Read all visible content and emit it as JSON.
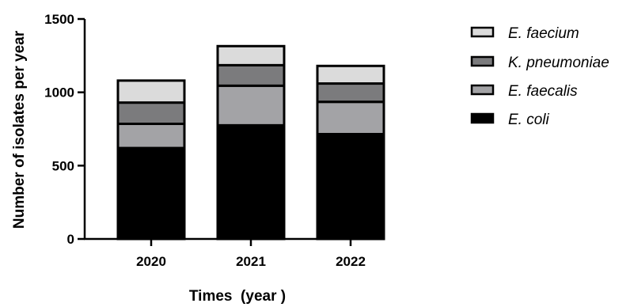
{
  "chart_data": {
    "type": "bar",
    "stacked": true,
    "categories": [
      "2020",
      "2021",
      "2022"
    ],
    "series": [
      {
        "name": "E. coli",
        "values": [
          620,
          775,
          715
        ],
        "color": "#000000"
      },
      {
        "name": "E. faecalis",
        "values": [
          165,
          270,
          220
        ],
        "color": "#a3a3a6"
      },
      {
        "name": "K. pneumoniae",
        "values": [
          145,
          140,
          125
        ],
        "color": "#7b7b7d"
      },
      {
        "name": "E. faecium",
        "values": [
          150,
          130,
          120
        ],
        "color": "#dbdbdb"
      }
    ],
    "legend_order": [
      "E. faecium",
      "K. pneumoniae",
      "E. faecalis",
      "E. coli"
    ],
    "xlabel": "Times  (year )",
    "ylabel": "Number of isolates per year",
    "ylim": [
      0,
      1500
    ],
    "yticks": [
      "0",
      "500",
      "1000",
      "1500"
    ],
    "grid": false,
    "legend_position": "right"
  }
}
